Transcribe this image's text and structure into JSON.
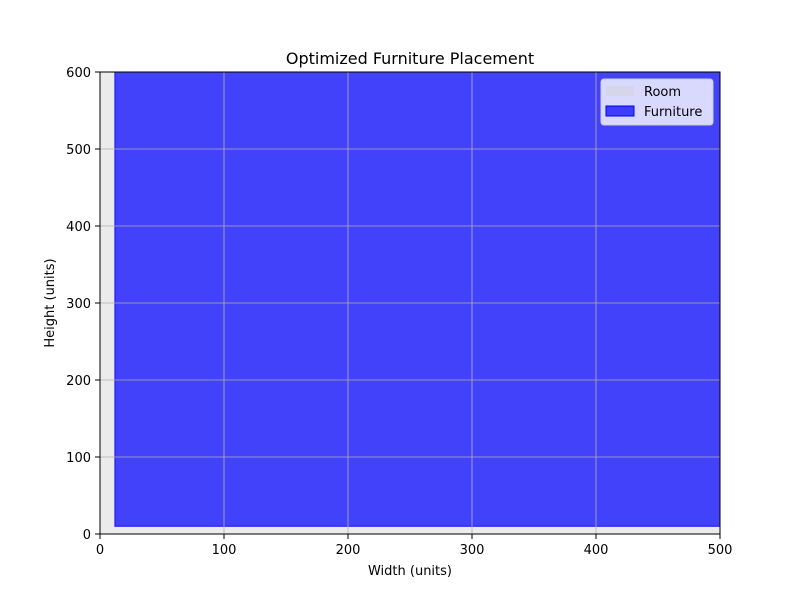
{
  "chart_data": {
    "type": "area",
    "title": "Optimized Furniture Placement",
    "xlabel": "Width (units)",
    "ylabel": "Height (units)",
    "xlim": [
      0,
      500
    ],
    "ylim": [
      0,
      600
    ],
    "xticks": [
      0,
      100,
      200,
      300,
      400,
      500
    ],
    "yticks": [
      0,
      100,
      200,
      300,
      400,
      500,
      600
    ],
    "grid": true,
    "legend_position": "top-right",
    "series": [
      {
        "name": "Room",
        "shape": "rectangle",
        "x": [
          0,
          500
        ],
        "y": [
          0,
          600
        ],
        "color": "#d3d3d3"
      },
      {
        "name": "Furniture",
        "shape": "rectangle",
        "x": [
          12,
          500
        ],
        "y": [
          10,
          600
        ],
        "color": "#0000ff"
      }
    ]
  }
}
